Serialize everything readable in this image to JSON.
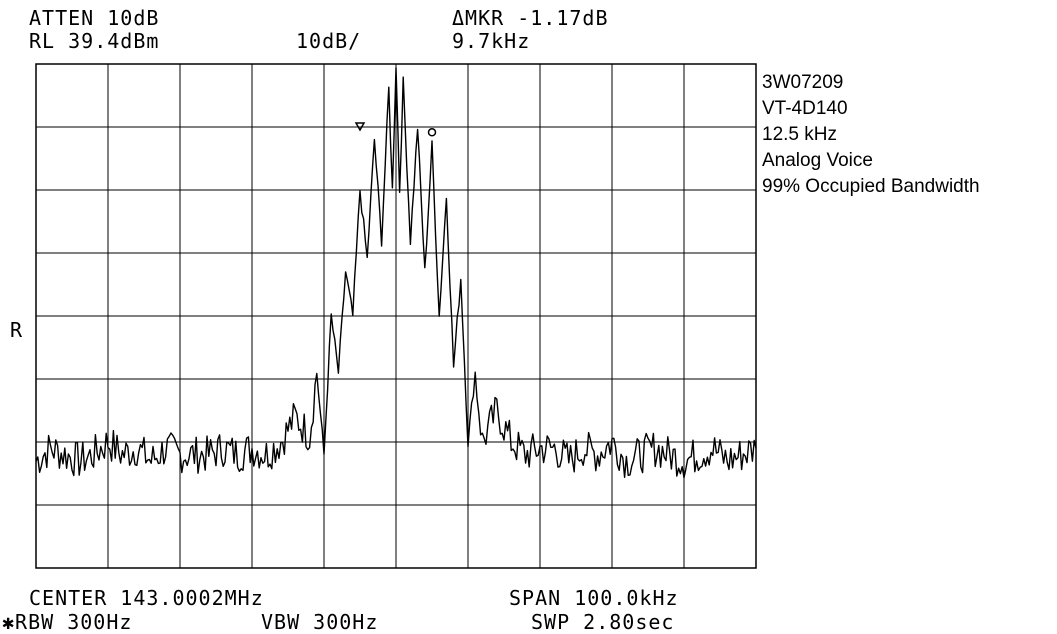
{
  "header": {
    "atten": "ATTEN 10dB",
    "ref_level": "RL 39.4dBm",
    "scale": "10dB/",
    "marker_delta": "ΔMKR -1.17dB",
    "marker_freq": "9.7kHz"
  },
  "annotations": {
    "lines": [
      "3W07209",
      "VT-4D140",
      "12.5 kHz",
      "Analog Voice",
      "99% Occupied Bandwidth"
    ],
    "ref_marker": "R"
  },
  "footer": {
    "center": "CENTER 143.0002MHz",
    "span": "SPAN 100.0kHz",
    "rbw": "✱RBW 300Hz",
    "vbw": "VBW 300Hz",
    "sweep": "SWP 2.80sec"
  },
  "chart_data": {
    "type": "line",
    "grid": true,
    "xlim": [
      -50,
      50
    ],
    "ylim": [
      -80,
      0
    ],
    "x_divisions": 10,
    "y_divisions": 8,
    "noise_floor_db": -62,
    "trace": [
      [
        -50,
        -63
      ],
      [
        -48,
        -61
      ],
      [
        -46,
        -62
      ],
      [
        -44,
        -63
      ],
      [
        -42,
        -62
      ],
      [
        -40,
        -60
      ],
      [
        -38,
        -62
      ],
      [
        -36,
        -61
      ],
      [
        -34,
        -63
      ],
      [
        -32,
        -61
      ],
      [
        -30,
        -62
      ],
      [
        -28,
        -62
      ],
      [
        -26,
        -62
      ],
      [
        -24,
        -61
      ],
      [
        -22,
        -62
      ],
      [
        -20,
        -61
      ],
      [
        -18,
        -62
      ],
      [
        -16,
        -60
      ],
      [
        -14,
        -56
      ],
      [
        -12,
        -59
      ],
      [
        -11,
        -49
      ],
      [
        -10,
        -62
      ],
      [
        -9,
        -40
      ],
      [
        -8,
        -49
      ],
      [
        -7,
        -33
      ],
      [
        -6,
        -40
      ],
      [
        -5,
        -20
      ],
      [
        -4,
        -31
      ],
      [
        -3,
        -12
      ],
      [
        -2,
        -28
      ],
      [
        -1,
        -4
      ],
      [
        -0.5,
        -20
      ],
      [
        0,
        0
      ],
      [
        0.5,
        -20
      ],
      [
        1,
        -3
      ],
      [
        2,
        -28
      ],
      [
        3,
        -10
      ],
      [
        4,
        -33
      ],
      [
        5,
        -13
      ],
      [
        6,
        -40
      ],
      [
        7,
        -21
      ],
      [
        8,
        -48
      ],
      [
        9,
        -34
      ],
      [
        10,
        -60
      ],
      [
        11,
        -49
      ],
      [
        12,
        -60
      ],
      [
        14,
        -55
      ],
      [
        16,
        -60
      ],
      [
        18,
        -62
      ],
      [
        20,
        -61
      ],
      [
        22,
        -61
      ],
      [
        24,
        -63
      ],
      [
        26,
        -61
      ],
      [
        28,
        -62
      ],
      [
        30,
        -60
      ],
      [
        32,
        -63
      ],
      [
        34,
        -62
      ],
      [
        36,
        -61
      ],
      [
        38,
        -62
      ],
      [
        40,
        -63
      ],
      [
        42,
        -62
      ],
      [
        44,
        -61
      ],
      [
        46,
        -63
      ],
      [
        48,
        -62
      ],
      [
        50,
        -61
      ]
    ],
    "markers": [
      [
        -5,
        -10
      ],
      [
        5,
        -11
      ]
    ]
  }
}
